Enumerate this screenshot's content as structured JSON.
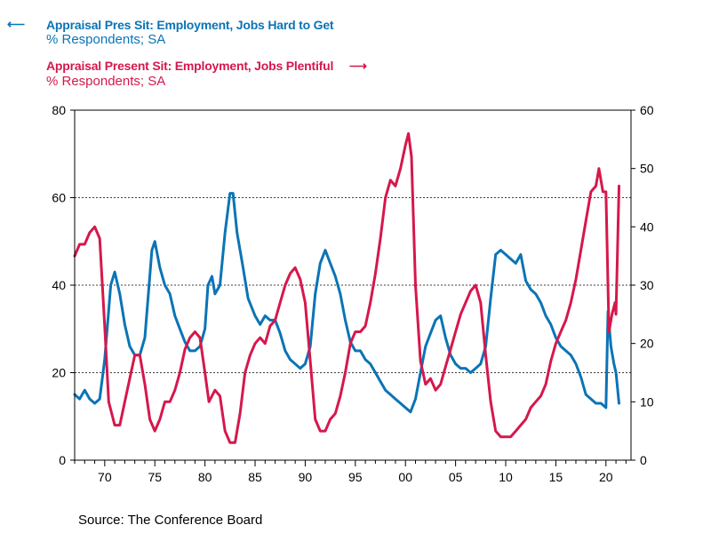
{
  "legend": {
    "series1_title": "Appraisal Pres Sit: Employment, Jobs Hard to Get",
    "series1_unit": "% Respondents; SA",
    "series2_title": "Appraisal Present Sit: Employment, Jobs Plentiful",
    "series2_unit": "% Respondents; SA"
  },
  "source": "Source:  The Conference Board",
  "colors": {
    "hard": "#0a74b5",
    "plentiful": "#d5184c",
    "axis": "#000000",
    "grid": "#000000"
  },
  "chart_data": {
    "type": "line",
    "title": "",
    "x_ticks": [
      "70",
      "75",
      "80",
      "85",
      "90",
      "95",
      "00",
      "05",
      "10",
      "15",
      "20"
    ],
    "x_tick_years": [
      1970,
      1975,
      1980,
      1985,
      1990,
      1995,
      2000,
      2005,
      2010,
      2015,
      2020
    ],
    "xlim": [
      1967,
      2022.5
    ],
    "left_axis": {
      "ylim": [
        0,
        80
      ],
      "ticks": [
        "0",
        "20",
        "40",
        "60",
        "80"
      ]
    },
    "right_axis": {
      "ylim": [
        0,
        60
      ],
      "ticks": [
        "0",
        "10",
        "20",
        "30",
        "40",
        "50",
        "60"
      ]
    },
    "gridlines_left": [
      20,
      40,
      60
    ],
    "series": [
      {
        "name": "Appraisal Pres Sit: Employment, Jobs Hard to Get",
        "axis": "left",
        "points": [
          [
            1967.0,
            15
          ],
          [
            1967.5,
            14
          ],
          [
            1968.0,
            16
          ],
          [
            1968.5,
            14
          ],
          [
            1969.0,
            13
          ],
          [
            1969.5,
            14
          ],
          [
            1970.0,
            23
          ],
          [
            1970.6,
            40
          ],
          [
            1971.0,
            43
          ],
          [
            1971.5,
            38
          ],
          [
            1972.0,
            31
          ],
          [
            1972.5,
            26
          ],
          [
            1973.0,
            24
          ],
          [
            1973.5,
            24
          ],
          [
            1974.0,
            28
          ],
          [
            1974.7,
            48
          ],
          [
            1975.0,
            50
          ],
          [
            1975.5,
            44
          ],
          [
            1976.0,
            40
          ],
          [
            1976.5,
            38
          ],
          [
            1977.0,
            33
          ],
          [
            1977.5,
            30
          ],
          [
            1978.0,
            27
          ],
          [
            1978.5,
            25
          ],
          [
            1979.0,
            25
          ],
          [
            1979.5,
            26
          ],
          [
            1980.0,
            30
          ],
          [
            1980.3,
            40
          ],
          [
            1980.7,
            42
          ],
          [
            1981.0,
            38
          ],
          [
            1981.5,
            40
          ],
          [
            1982.0,
            52
          ],
          [
            1982.5,
            61
          ],
          [
            1982.8,
            61
          ],
          [
            1983.2,
            52
          ],
          [
            1983.8,
            44
          ],
          [
            1984.3,
            37
          ],
          [
            1985.0,
            33
          ],
          [
            1985.5,
            31
          ],
          [
            1986.0,
            33
          ],
          [
            1986.5,
            32
          ],
          [
            1987.0,
            32
          ],
          [
            1987.5,
            29
          ],
          [
            1988.0,
            25
          ],
          [
            1988.5,
            23
          ],
          [
            1989.0,
            22
          ],
          [
            1989.5,
            21
          ],
          [
            1990.0,
            22
          ],
          [
            1990.5,
            26
          ],
          [
            1991.0,
            38
          ],
          [
            1991.5,
            45
          ],
          [
            1992.0,
            48
          ],
          [
            1992.5,
            45
          ],
          [
            1993.0,
            42
          ],
          [
            1993.5,
            38
          ],
          [
            1994.0,
            32
          ],
          [
            1994.5,
            27
          ],
          [
            1995.0,
            25
          ],
          [
            1995.5,
            25
          ],
          [
            1996.0,
            23
          ],
          [
            1996.5,
            22
          ],
          [
            1997.0,
            20
          ],
          [
            1997.5,
            18
          ],
          [
            1998.0,
            16
          ],
          [
            1998.5,
            15
          ],
          [
            1999.0,
            14
          ],
          [
            1999.5,
            13
          ],
          [
            2000.0,
            12
          ],
          [
            2000.5,
            11
          ],
          [
            2001.0,
            14
          ],
          [
            2001.5,
            20
          ],
          [
            2002.0,
            26
          ],
          [
            2002.5,
            29
          ],
          [
            2003.0,
            32
          ],
          [
            2003.5,
            33
          ],
          [
            2004.0,
            28
          ],
          [
            2004.5,
            24
          ],
          [
            2005.0,
            22
          ],
          [
            2005.5,
            21
          ],
          [
            2006.0,
            21
          ],
          [
            2006.5,
            20
          ],
          [
            2007.0,
            21
          ],
          [
            2007.5,
            22
          ],
          [
            2008.0,
            26
          ],
          [
            2008.5,
            37
          ],
          [
            2009.0,
            47
          ],
          [
            2009.5,
            48
          ],
          [
            2010.0,
            47
          ],
          [
            2010.5,
            46
          ],
          [
            2011.0,
            45
          ],
          [
            2011.5,
            47
          ],
          [
            2012.0,
            41
          ],
          [
            2012.5,
            39
          ],
          [
            2013.0,
            38
          ],
          [
            2013.5,
            36
          ],
          [
            2014.0,
            33
          ],
          [
            2014.5,
            31
          ],
          [
            2015.0,
            28
          ],
          [
            2015.5,
            26
          ],
          [
            2016.0,
            25
          ],
          [
            2016.5,
            24
          ],
          [
            2017.0,
            22
          ],
          [
            2017.5,
            19
          ],
          [
            2018.0,
            15
          ],
          [
            2018.5,
            14
          ],
          [
            2019.0,
            13
          ],
          [
            2019.5,
            13
          ],
          [
            2020.0,
            12
          ],
          [
            2020.2,
            34
          ],
          [
            2020.5,
            26
          ],
          [
            2020.8,
            22
          ],
          [
            2021.0,
            20
          ],
          [
            2021.3,
            13
          ]
        ]
      },
      {
        "name": "Appraisal Present Sit: Employment, Jobs Plentiful",
        "axis": "right",
        "points": [
          [
            1967.0,
            35
          ],
          [
            1967.5,
            37
          ],
          [
            1968.0,
            37
          ],
          [
            1968.5,
            39
          ],
          [
            1969.0,
            40
          ],
          [
            1969.5,
            38
          ],
          [
            1970.0,
            23
          ],
          [
            1970.4,
            10
          ],
          [
            1971.0,
            6
          ],
          [
            1971.5,
            6
          ],
          [
            1972.0,
            10
          ],
          [
            1972.5,
            14
          ],
          [
            1973.0,
            18
          ],
          [
            1973.5,
            18
          ],
          [
            1974.0,
            13
          ],
          [
            1974.5,
            7
          ],
          [
            1975.0,
            5
          ],
          [
            1975.5,
            7
          ],
          [
            1976.0,
            10
          ],
          [
            1976.5,
            10
          ],
          [
            1977.0,
            12
          ],
          [
            1977.5,
            15
          ],
          [
            1978.0,
            19
          ],
          [
            1978.5,
            21
          ],
          [
            1979.0,
            22
          ],
          [
            1979.5,
            21
          ],
          [
            1980.0,
            15
          ],
          [
            1980.4,
            10
          ],
          [
            1981.0,
            12
          ],
          [
            1981.5,
            11
          ],
          [
            1982.0,
            5
          ],
          [
            1982.5,
            3
          ],
          [
            1983.0,
            3
          ],
          [
            1983.5,
            8
          ],
          [
            1984.0,
            15
          ],
          [
            1984.5,
            18
          ],
          [
            1985.0,
            20
          ],
          [
            1985.5,
            21
          ],
          [
            1986.0,
            20
          ],
          [
            1986.5,
            23
          ],
          [
            1987.0,
            24
          ],
          [
            1987.5,
            27
          ],
          [
            1988.0,
            30
          ],
          [
            1988.5,
            32
          ],
          [
            1989.0,
            33
          ],
          [
            1989.5,
            31
          ],
          [
            1990.0,
            27
          ],
          [
            1990.5,
            17
          ],
          [
            1991.0,
            7
          ],
          [
            1991.5,
            5
          ],
          [
            1992.0,
            5
          ],
          [
            1992.5,
            7
          ],
          [
            1993.0,
            8
          ],
          [
            1993.5,
            11
          ],
          [
            1994.0,
            15
          ],
          [
            1994.5,
            20
          ],
          [
            1995.0,
            22
          ],
          [
            1995.5,
            22
          ],
          [
            1996.0,
            23
          ],
          [
            1996.5,
            27
          ],
          [
            1997.0,
            32
          ],
          [
            1997.5,
            38
          ],
          [
            1998.0,
            45
          ],
          [
            1998.5,
            48
          ],
          [
            1999.0,
            47
          ],
          [
            1999.5,
            50
          ],
          [
            2000.0,
            54
          ],
          [
            2000.3,
            56
          ],
          [
            2000.6,
            52
          ],
          [
            2001.0,
            30
          ],
          [
            2001.5,
            17
          ],
          [
            2002.0,
            13
          ],
          [
            2002.5,
            14
          ],
          [
            2003.0,
            12
          ],
          [
            2003.5,
            13
          ],
          [
            2004.0,
            16
          ],
          [
            2004.5,
            19
          ],
          [
            2005.0,
            22
          ],
          [
            2005.5,
            25
          ],
          [
            2006.0,
            27
          ],
          [
            2006.5,
            29
          ],
          [
            2007.0,
            30
          ],
          [
            2007.5,
            27
          ],
          [
            2008.0,
            18
          ],
          [
            2008.5,
            10
          ],
          [
            2009.0,
            5
          ],
          [
            2009.5,
            4
          ],
          [
            2010.0,
            4
          ],
          [
            2010.5,
            4
          ],
          [
            2011.0,
            5
          ],
          [
            2011.5,
            6
          ],
          [
            2012.0,
            7
          ],
          [
            2012.5,
            9
          ],
          [
            2013.0,
            10
          ],
          [
            2013.5,
            11
          ],
          [
            2014.0,
            13
          ],
          [
            2014.5,
            17
          ],
          [
            2015.0,
            20
          ],
          [
            2015.5,
            22
          ],
          [
            2016.0,
            24
          ],
          [
            2016.5,
            27
          ],
          [
            2017.0,
            31
          ],
          [
            2017.5,
            36
          ],
          [
            2018.0,
            41
          ],
          [
            2018.5,
            46
          ],
          [
            2019.0,
            47
          ],
          [
            2019.3,
            50
          ],
          [
            2019.7,
            46
          ],
          [
            2020.0,
            46
          ],
          [
            2020.3,
            22
          ],
          [
            2020.6,
            25
          ],
          [
            2020.9,
            27
          ],
          [
            2021.0,
            25
          ],
          [
            2021.3,
            47
          ]
        ]
      }
    ]
  }
}
